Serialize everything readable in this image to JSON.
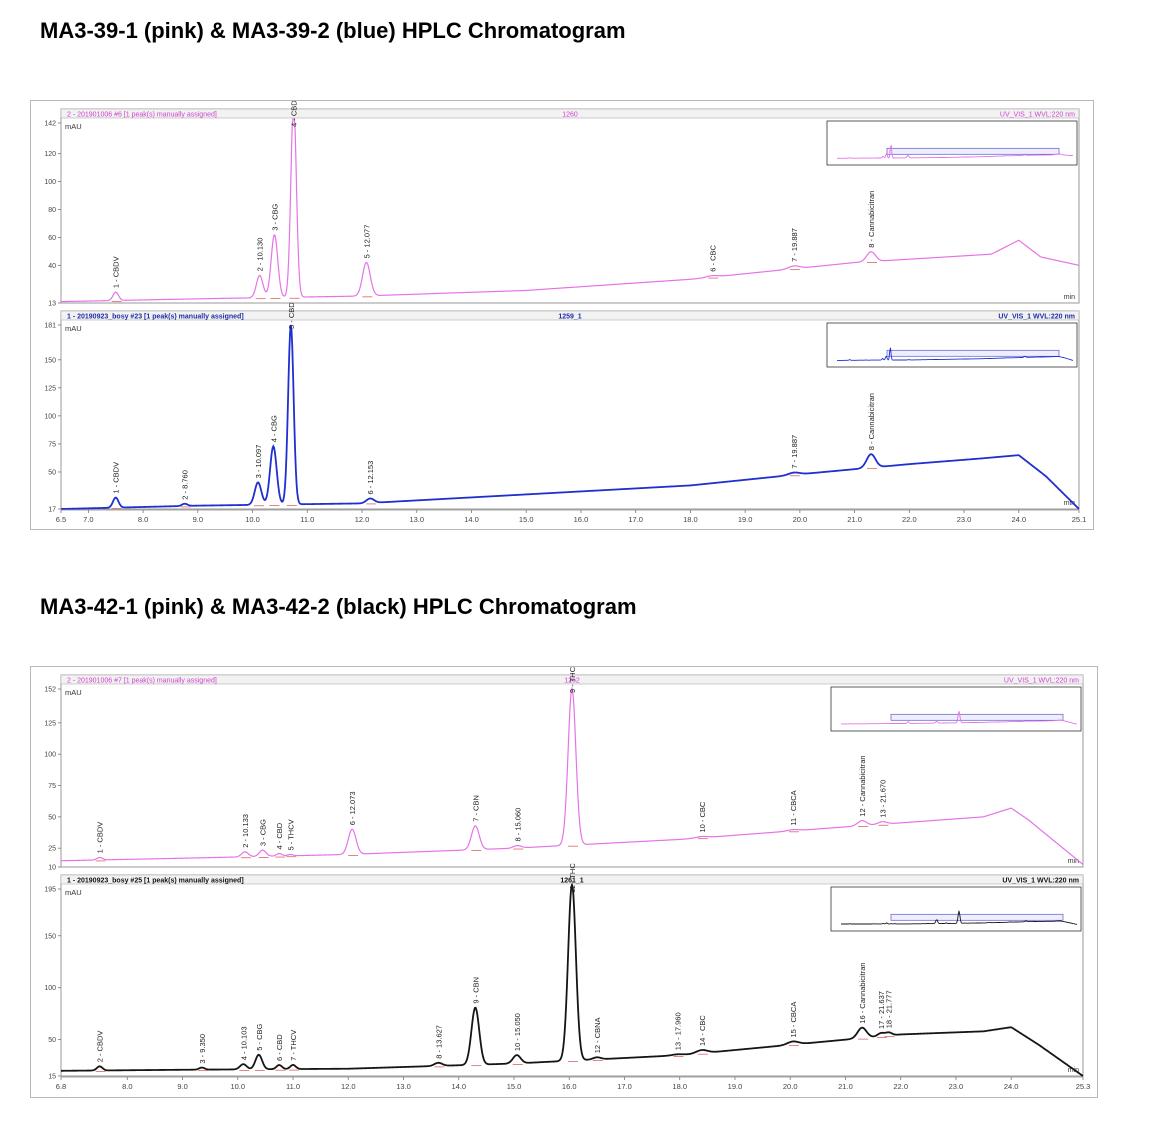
{
  "titles": {
    "figure1": "MA3-39-1 (pink) & MA3-39-2 (blue) HPLC Chromatogram",
    "figure2": "MA3-42-1 (pink) & MA3-42-2 (black) HPLC Chromatogram"
  },
  "colors": {
    "pink": "#e673e6",
    "blue": "#1f2fd0",
    "black": "#151515",
    "header_pink": "#d042d0",
    "header_blue": "#1d2ea8",
    "grid_text": "#444444"
  },
  "chart_data": [
    {
      "type": "line",
      "figure": 1,
      "xlim": [
        6.5,
        25.1
      ],
      "x_ticks": [
        "6.5",
        "7.0",
        "8.0",
        "9.0",
        "10.0",
        "11.0",
        "12.0",
        "13.0",
        "14.0",
        "15.0",
        "16.0",
        "17.0",
        "18.0",
        "19.0",
        "20.0",
        "21.0",
        "22.0",
        "23.0",
        "24.0",
        "25.1"
      ],
      "panels": [
        {
          "header_left": "2 - 201901006 #6 [1 peak(s) manually assigned]",
          "header_center": "1260",
          "header_right": "UV_VIS_1 WVL:220 nm",
          "ylabel": "mAU",
          "xlabel": "min",
          "ylim": [
            13,
            142
          ],
          "y_ticks": [
            "142",
            "120",
            "100",
            "80",
            "60",
            "40",
            "13"
          ],
          "color": "pink",
          "baseline": [
            [
              6.5,
              14
            ],
            [
              9,
              16
            ],
            [
              12,
              18
            ],
            [
              15,
              22
            ],
            [
              18,
              30
            ],
            [
              21,
              42
            ],
            [
              23.5,
              48
            ],
            [
              24,
              58
            ],
            [
              24.4,
              46
            ],
            [
              25.1,
              40
            ]
          ],
          "peaks": [
            {
              "x": 7.5,
              "h": 6,
              "w": 0.05,
              "label": "1 - CBDV"
            },
            {
              "x": 10.13,
              "h": 16,
              "w": 0.06,
              "label": "2 - 10.130"
            },
            {
              "x": 10.4,
              "h": 45,
              "w": 0.06,
              "label": "3 - CBG"
            },
            {
              "x": 10.75,
              "h": 140,
              "w": 0.05,
              "label": "4 - CBD"
            },
            {
              "x": 12.08,
              "h": 24,
              "w": 0.07,
              "label": "5 - 12.077"
            },
            {
              "x": 18.4,
              "h": 1,
              "w": 0.1,
              "label": "6 - CBC"
            },
            {
              "x": 19.89,
              "h": 2,
              "w": 0.1,
              "label": "7 - 19.887"
            },
            {
              "x": 21.3,
              "h": 7,
              "w": 0.08,
              "label": "8 - Cannabicitran"
            }
          ]
        },
        {
          "header_left": "1 - 20190923_bosy #23 [1 peak(s) manually assigned]",
          "header_center": "1259_1",
          "header_right": "UV_VIS_1 WVL:220 nm",
          "ylabel": "mAU",
          "xlabel": "min",
          "ylim": [
            17,
            181
          ],
          "y_ticks": [
            "181",
            "150",
            "125",
            "100",
            "75",
            "50",
            "17"
          ],
          "color": "blue",
          "baseline": [
            [
              6.5,
              17
            ],
            [
              9,
              20
            ],
            [
              12,
              22
            ],
            [
              15,
              30
            ],
            [
              18,
              38
            ],
            [
              20,
              48
            ],
            [
              22,
              57
            ],
            [
              23.3,
              62
            ],
            [
              24,
              65
            ],
            [
              24.5,
              46
            ],
            [
              25.1,
              17
            ]
          ],
          "peaks": [
            {
              "x": 7.5,
              "h": 9,
              "w": 0.05,
              "label": "1 - CBDV"
            },
            {
              "x": 8.76,
              "h": 2,
              "w": 0.05,
              "label": "2 - 8.760"
            },
            {
              "x": 10.1,
              "h": 20,
              "w": 0.06,
              "label": "3 - 10.097"
            },
            {
              "x": 10.38,
              "h": 52,
              "w": 0.06,
              "label": "4 - CBG"
            },
            {
              "x": 10.7,
              "h": 160,
              "w": 0.05,
              "label": "5 - CBD"
            },
            {
              "x": 12.15,
              "h": 4,
              "w": 0.07,
              "label": "6 - 12.153"
            },
            {
              "x": 19.89,
              "h": 2,
              "w": 0.1,
              "label": "7 - 19.887"
            },
            {
              "x": 21.3,
              "h": 12,
              "w": 0.08,
              "label": "8 - Cannabicitran"
            }
          ]
        }
      ]
    },
    {
      "type": "line",
      "figure": 2,
      "xlim": [
        6.8,
        25.3
      ],
      "x_ticks": [
        "6.8",
        "8.0",
        "9.0",
        "10.0",
        "11.0",
        "12.0",
        "13.0",
        "14.0",
        "15.0",
        "16.0",
        "17.0",
        "18.0",
        "19.0",
        "20.0",
        "21.0",
        "22.0",
        "23.0",
        "24.0",
        "25.3"
      ],
      "panels": [
        {
          "header_left": "2 - 201901006 #7 [1 peak(s) manually assigned]",
          "header_center": "1262",
          "header_right": "UV_VIS_1 WVL:220 nm",
          "ylabel": "mAU",
          "xlabel": "min",
          "ylim": [
            10,
            152
          ],
          "y_ticks": [
            "152",
            "125",
            "100",
            "75",
            "50",
            "25",
            "10"
          ],
          "color": "pink",
          "baseline": [
            [
              6.8,
              15
            ],
            [
              9,
              17
            ],
            [
              12,
              20
            ],
            [
              15,
              25
            ],
            [
              18,
              32
            ],
            [
              21,
              42
            ],
            [
              23.5,
              50
            ],
            [
              24,
              57
            ],
            [
              24.3,
              48
            ],
            [
              25.3,
              12
            ]
          ],
          "peaks": [
            {
              "x": 7.5,
              "h": 2,
              "w": 0.05,
              "label": "1 - CBDV"
            },
            {
              "x": 10.13,
              "h": 4,
              "w": 0.06,
              "label": "2 - 10.133"
            },
            {
              "x": 10.45,
              "h": 5,
              "w": 0.06,
              "label": "3 - CBG"
            },
            {
              "x": 10.75,
              "h": 2,
              "w": 0.05,
              "label": "4 - CBD"
            },
            {
              "x": 10.95,
              "h": 1,
              "w": 0.05,
              "label": "5 - THCV"
            },
            {
              "x": 12.07,
              "h": 20,
              "w": 0.07,
              "label": "6 - 12.073"
            },
            {
              "x": 14.3,
              "h": 19,
              "w": 0.07,
              "label": "7 - CBN"
            },
            {
              "x": 15.06,
              "h": 2,
              "w": 0.07,
              "label": "8 - 15.060"
            },
            {
              "x": 16.05,
              "h": 125,
              "w": 0.07,
              "label": "9 - THC"
            },
            {
              "x": 18.4,
              "h": 1,
              "w": 0.1,
              "label": "10 - CBC"
            },
            {
              "x": 20.05,
              "h": 1,
              "w": 0.1,
              "label": "11 - CBCA"
            },
            {
              "x": 21.3,
              "h": 4,
              "w": 0.08,
              "label": "12 - Cannabicitran"
            },
            {
              "x": 21.67,
              "h": 2,
              "w": 0.08,
              "label": "13 - 21.670"
            }
          ]
        },
        {
          "header_left": "1 - 20190923_bosy #25 [1 peak(s) manually assigned]",
          "header_center": "1261_1",
          "header_right": "UV_VIS_1 WVL:220 nm",
          "ylabel": "mAU",
          "xlabel": "min",
          "ylim": [
            15,
            195
          ],
          "y_ticks": [
            "195",
            "150",
            "100",
            "50",
            "15"
          ],
          "color": "black",
          "baseline": [
            [
              6.8,
              20
            ],
            [
              9,
              21
            ],
            [
              12,
              22
            ],
            [
              15,
              27
            ],
            [
              18,
              35
            ],
            [
              20,
              45
            ],
            [
              22,
              55
            ],
            [
              23.5,
              58
            ],
            [
              24,
              62
            ],
            [
              24.5,
              45
            ],
            [
              25.3,
              15
            ]
          ],
          "peaks": [
            {
              "x": 7.5,
              "h": 4,
              "w": 0.05,
              "label": "2 - CBDV"
            },
            {
              "x": 9.35,
              "h": 2,
              "w": 0.05,
              "label": "3 - 9.350"
            },
            {
              "x": 10.1,
              "h": 5,
              "w": 0.06,
              "label": "4 - 10.103"
            },
            {
              "x": 10.38,
              "h": 14,
              "w": 0.06,
              "label": "5 - CBG"
            },
            {
              "x": 10.75,
              "h": 4,
              "w": 0.05,
              "label": "6 - CBD"
            },
            {
              "x": 11.0,
              "h": 4,
              "w": 0.05,
              "label": "7 - THCV"
            },
            {
              "x": 13.63,
              "h": 3,
              "w": 0.07,
              "label": "8 - 13.627"
            },
            {
              "x": 14.3,
              "h": 55,
              "w": 0.07,
              "label": "9 - CBN"
            },
            {
              "x": 15.05,
              "h": 8,
              "w": 0.07,
              "label": "10 - 15.050"
            },
            {
              "x": 16.05,
              "h": 170,
              "w": 0.07,
              "label": "11 - THC"
            },
            {
              "x": 16.5,
              "h": 2,
              "w": 0.07,
              "label": "12 - CBNA"
            },
            {
              "x": 17.96,
              "h": 1,
              "w": 0.1,
              "label": "13 - 17.960"
            },
            {
              "x": 18.4,
              "h": 3,
              "w": 0.1,
              "label": "14 - CBC"
            },
            {
              "x": 20.05,
              "h": 3,
              "w": 0.1,
              "label": "15 - CBCA"
            },
            {
              "x": 21.3,
              "h": 10,
              "w": 0.08,
              "label": "16 - Cannabicitran"
            },
            {
              "x": 21.64,
              "h": 3,
              "w": 0.06,
              "label": "17 - 21.637"
            },
            {
              "x": 21.78,
              "h": 3,
              "w": 0.06,
              "label": "18 - 21.777"
            }
          ]
        }
      ]
    }
  ]
}
